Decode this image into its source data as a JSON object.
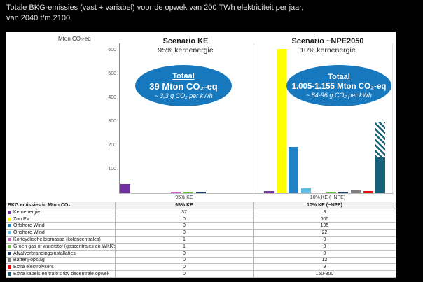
{
  "title": {
    "line1": "Totale BKG-emissies (vast + variabel) voor de opwek van 200 TWh elektriciteit per jaar,",
    "line2": "van 2040 t/m 2100."
  },
  "axis": {
    "unit_label": "Mton CO₂-eq"
  },
  "scenarios": [
    {
      "name": "Scenario KE",
      "subtitle": "95% kernenergie",
      "axis_label": "95% KE",
      "total": {
        "heading": "Totaal",
        "value": "39 Mton CO₂-eq",
        "per_kwh": "~ 3,3 g CO₂ per kWh"
      }
    },
    {
      "name": "Scenario ~NPE2050",
      "subtitle": "10% kernenergie",
      "axis_label": "10% KE (~NPE)",
      "total": {
        "heading": "Totaal",
        "value": "1.005-1.155 Mton CO₂-eq",
        "per_kwh": "~ 84-96 g CO₂ per kWh"
      }
    }
  ],
  "table": {
    "header": {
      "label": "BKG emissies in Mton CO₂",
      "col1": "95% KE",
      "col2": "10% KE (~NPE)"
    }
  },
  "colors": {
    "ellipse_blue": "#1878BE"
  },
  "chart_data": {
    "type": "bar",
    "title": "Totale BKG-emissies (vast + variabel) voor de opwek van 200 TWh elektriciteit per jaar, van 2040 t/m 2100.",
    "ylabel": "Mton CO₂-eq",
    "ylim": [
      0,
      650
    ],
    "yticks": [
      100,
      200,
      300,
      400,
      500,
      600
    ],
    "grid": false,
    "groups": [
      "95% KE",
      "10% KE (~NPE)"
    ],
    "categories": [
      "Kernenergie",
      "Zon PV",
      "Offshore Wind",
      "Onshore Wind",
      "Kortcyclische biomassa (kolencentrales)",
      "Groen gas of waterstof (gascentrales en WKK's)",
      "Afvalverbrandingsinstallaties",
      "Batterij-opslag",
      "Extra electrolysers",
      "Extra kabels en trafo's tbv decentrale opwek"
    ],
    "colors": [
      "#7030A0",
      "#FFFF00",
      "#2181C4",
      "#62BCE4",
      "#C75FC1",
      "#6CBE45",
      "#1F3F66",
      "#7F7F7F",
      "#F20D0D",
      "#16607A"
    ],
    "series": [
      {
        "name": "95% KE",
        "values": [
          37,
          0,
          0,
          0,
          1,
          1,
          0,
          0,
          0,
          0
        ]
      },
      {
        "name": "10% KE (~NPE)",
        "values": [
          8,
          605,
          195,
          22,
          0,
          3,
          0,
          12,
          9,
          "150-300"
        ]
      }
    ],
    "zero_line_categories": [
      "Afvalverbrandingsinstallaties"
    ],
    "range_bar_style": "solid minimum with hatched extension to maximum"
  }
}
